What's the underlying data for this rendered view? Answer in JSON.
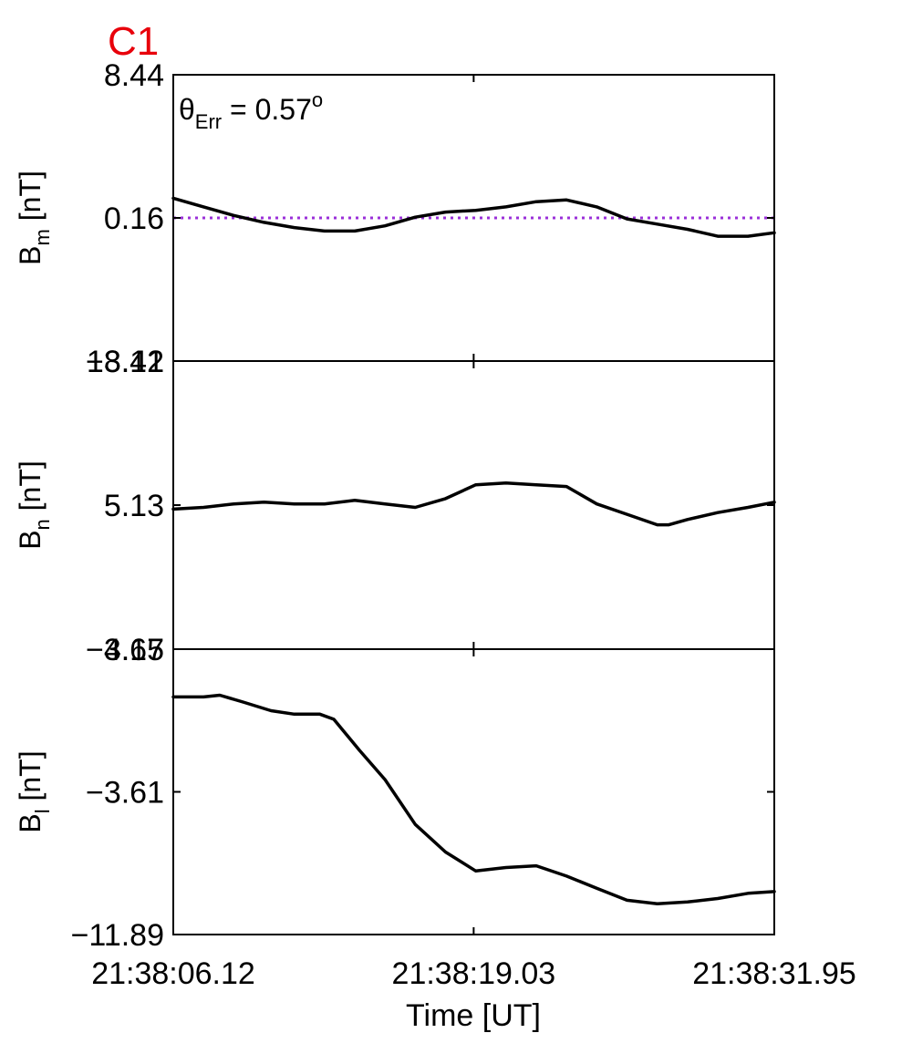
{
  "figure": {
    "spacecraft": "C1",
    "spacecraft_color": "#e8000b",
    "annotation": {
      "theta": "θ",
      "sub": "Err",
      "rest": " =  0.57",
      "sup": "o"
    }
  },
  "chart_data": [
    {
      "type": "line",
      "ylabel_main": "B",
      "ylabel_sub": "m",
      "ylabel_unit": " [nT]",
      "ylim": [
        -8.12,
        8.44
      ],
      "yticks": [
        "8.44",
        "0.16",
        "−8.12"
      ],
      "ytick_values": [
        8.44,
        0.16,
        -8.12
      ],
      "reference_line": {
        "y": 0.16,
        "color": "#9b30d9",
        "style": "dotted"
      },
      "x": [
        0,
        1.3,
        2.6,
        3.9,
        5.2,
        6.5,
        7.8,
        9.1,
        10.4,
        11.7,
        13.0,
        14.3,
        15.6,
        16.9,
        18.2,
        19.5,
        20.8,
        22.1,
        23.4,
        24.7,
        25.83
      ],
      "series": [
        {
          "values": [
            1.3,
            0.8,
            0.3,
            -0.1,
            -0.4,
            -0.6,
            -0.6,
            -0.3,
            0.2,
            0.5,
            0.6,
            0.8,
            1.1,
            1.2,
            0.8,
            0.1,
            -0.2,
            -0.5,
            -0.9,
            -0.9,
            -0.7
          ]
        }
      ]
    },
    {
      "type": "line",
      "ylabel_main": "B",
      "ylabel_sub": "n",
      "ylabel_unit": " [nT]",
      "ylim": [
        -3.15,
        13.41
      ],
      "yticks": [
        "13.41",
        "5.13",
        "−3.15"
      ],
      "ytick_values": [
        13.41,
        5.13,
        -3.15
      ],
      "x": [
        0,
        1.3,
        2.6,
        3.9,
        5.2,
        6.5,
        7.8,
        9.1,
        10.4,
        11.7,
        13.0,
        14.3,
        15.6,
        16.9,
        18.2,
        19.5,
        20.8,
        21.3,
        22.1,
        23.4,
        24.7,
        25.83
      ],
      "series": [
        {
          "values": [
            4.9,
            5.0,
            5.2,
            5.3,
            5.2,
            5.2,
            5.4,
            5.2,
            5.0,
            5.5,
            6.3,
            6.4,
            6.3,
            6.2,
            5.2,
            4.6,
            4.0,
            4.0,
            4.3,
            4.7,
            5.0,
            5.3
          ]
        }
      ]
    },
    {
      "type": "line",
      "ylabel_main": "B",
      "ylabel_sub": "l",
      "ylabel_unit": " [nT]",
      "ylim": [
        -11.89,
        4.67
      ],
      "yticks": [
        "4.67",
        "−3.61",
        "−11.89"
      ],
      "ytick_values": [
        4.67,
        -3.61,
        -11.89
      ],
      "x": [
        0,
        1.3,
        2.0,
        3.0,
        4.2,
        5.2,
        6.3,
        6.9,
        8.0,
        9.1,
        10.4,
        11.7,
        13.0,
        14.3,
        15.6,
        16.9,
        18.2,
        19.5,
        20.8,
        22.1,
        23.4,
        24.7,
        25.83
      ],
      "series": [
        {
          "values": [
            1.9,
            1.9,
            2.0,
            1.6,
            1.1,
            0.9,
            0.9,
            0.6,
            -1.2,
            -2.9,
            -5.5,
            -7.1,
            -8.2,
            -8.0,
            -7.9,
            -8.5,
            -9.2,
            -9.9,
            -10.1,
            -10.0,
            -9.8,
            -9.5,
            -9.4
          ]
        }
      ]
    }
  ],
  "xaxis": {
    "range": [
      0,
      25.83
    ],
    "tick_values": [
      0,
      12.91,
      25.83
    ],
    "tick_labels": [
      "21:38:06.12",
      "21:38:19.03",
      "21:38:31.95"
    ],
    "label": "Time [UT]"
  }
}
